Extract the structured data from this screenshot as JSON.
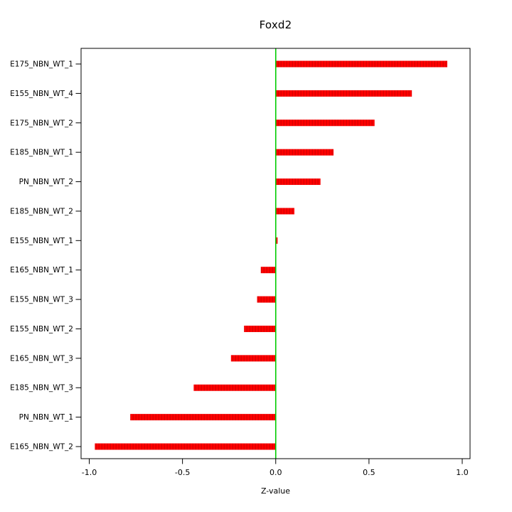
{
  "chart_data": {
    "type": "bar",
    "orientation": "horizontal",
    "title": "Foxd2",
    "xlabel": "Z-value",
    "ylabel": "",
    "xlim": [
      -1.0,
      1.0
    ],
    "x_ticks": [
      -1.0,
      -0.5,
      0.0,
      0.5,
      1.0
    ],
    "x_tick_labels": [
      "-1.0",
      "-0.5",
      "0.0",
      "0.5",
      "1.0"
    ],
    "categories": [
      "E175_NBN_WT_1",
      "E155_NBN_WT_4",
      "E175_NBN_WT_2",
      "E185_NBN_WT_1",
      "PN_NBN_WT_2",
      "E185_NBN_WT_2",
      "E155_NBN_WT_1",
      "E165_NBN_WT_1",
      "E155_NBN_WT_3",
      "E155_NBN_WT_2",
      "E165_NBN_WT_3",
      "E185_NBN_WT_3",
      "PN_NBN_WT_1",
      "E165_NBN_WT_2"
    ],
    "values": [
      0.92,
      0.73,
      0.53,
      0.31,
      0.24,
      0.1,
      0.01,
      -0.08,
      -0.1,
      -0.17,
      -0.24,
      -0.44,
      -0.78,
      -0.97
    ],
    "bar_color": "#ff0000",
    "bar_stripe_color": "#d40000",
    "zero_line_color": "#00cc00",
    "axis_color": "#000000",
    "background": "#ffffff",
    "grid": false,
    "legend": null
  }
}
